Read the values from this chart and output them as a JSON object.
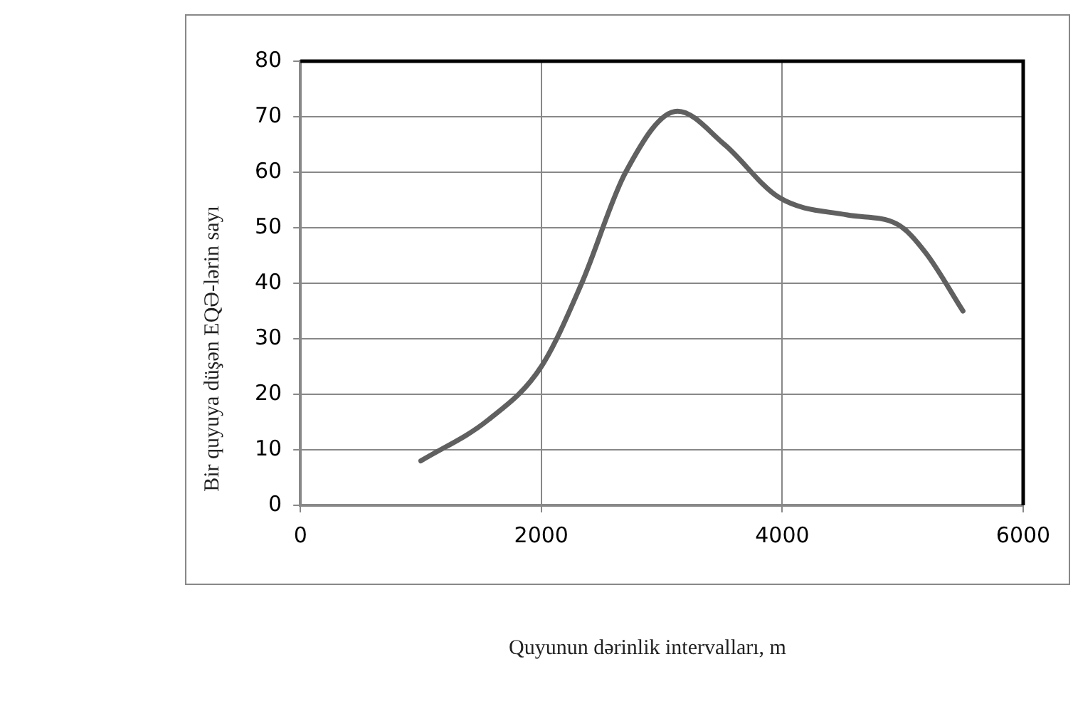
{
  "chart_data": {
    "type": "line",
    "xlabel": "Quyunun dərinlik intervalları, m",
    "ylabel": "Bir quyuya düşən EQƏ-lərin sayı",
    "x": [
      1000,
      1560,
      2000,
      2335,
      2700,
      3130,
      3520,
      3970,
      4540,
      4950,
      5190,
      5500
    ],
    "series": [
      {
        "color": "#606060",
        "values": [
          8,
          15.4,
          25,
          40,
          60,
          71,
          65,
          55.5,
          52.3,
          50.7,
          45.5,
          35
        ]
      }
    ],
    "xlim": [
      0,
      6000
    ],
    "xticks": [
      0,
      2000,
      4000,
      6000
    ],
    "ylim": [
      0,
      80
    ],
    "yticks": [
      0,
      10,
      20,
      30,
      40,
      50,
      60,
      70,
      80
    ],
    "grid": true,
    "legend": false,
    "marker": "none",
    "line_style": "solid"
  }
}
